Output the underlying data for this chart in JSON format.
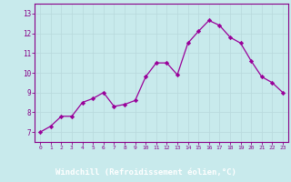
{
  "x": [
    0,
    1,
    2,
    3,
    4,
    5,
    6,
    7,
    8,
    9,
    10,
    11,
    12,
    13,
    14,
    15,
    16,
    17,
    18,
    19,
    20,
    21,
    22,
    23
  ],
  "y": [
    7.0,
    7.3,
    7.8,
    7.8,
    8.5,
    8.7,
    9.0,
    8.3,
    8.4,
    8.6,
    9.8,
    10.5,
    10.5,
    9.9,
    11.5,
    12.1,
    12.65,
    12.4,
    11.8,
    11.5,
    10.6,
    9.8,
    9.5,
    9.0
  ],
  "line_color": "#990099",
  "marker": "D",
  "marker_size": 2.2,
  "bg_color": "#c8eaec",
  "grid_color": "#b0c8cc",
  "xlabel": "Windchill (Refroidissement éolien,°C)",
  "xlabel_bg": "#7700aa",
  "xlabel_text_color": "#ffffff",
  "tick_color": "#880088",
  "ylim": [
    6.5,
    13.5
  ],
  "xlim": [
    -0.5,
    23.5
  ],
  "yticks": [
    7,
    8,
    9,
    10,
    11,
    12,
    13
  ],
  "xticks": [
    0,
    1,
    2,
    3,
    4,
    5,
    6,
    7,
    8,
    9,
    10,
    11,
    12,
    13,
    14,
    15,
    16,
    17,
    18,
    19,
    20,
    21,
    22,
    23
  ],
  "spine_color": "#880088",
  "grid_major_color": "#b8d8dc"
}
